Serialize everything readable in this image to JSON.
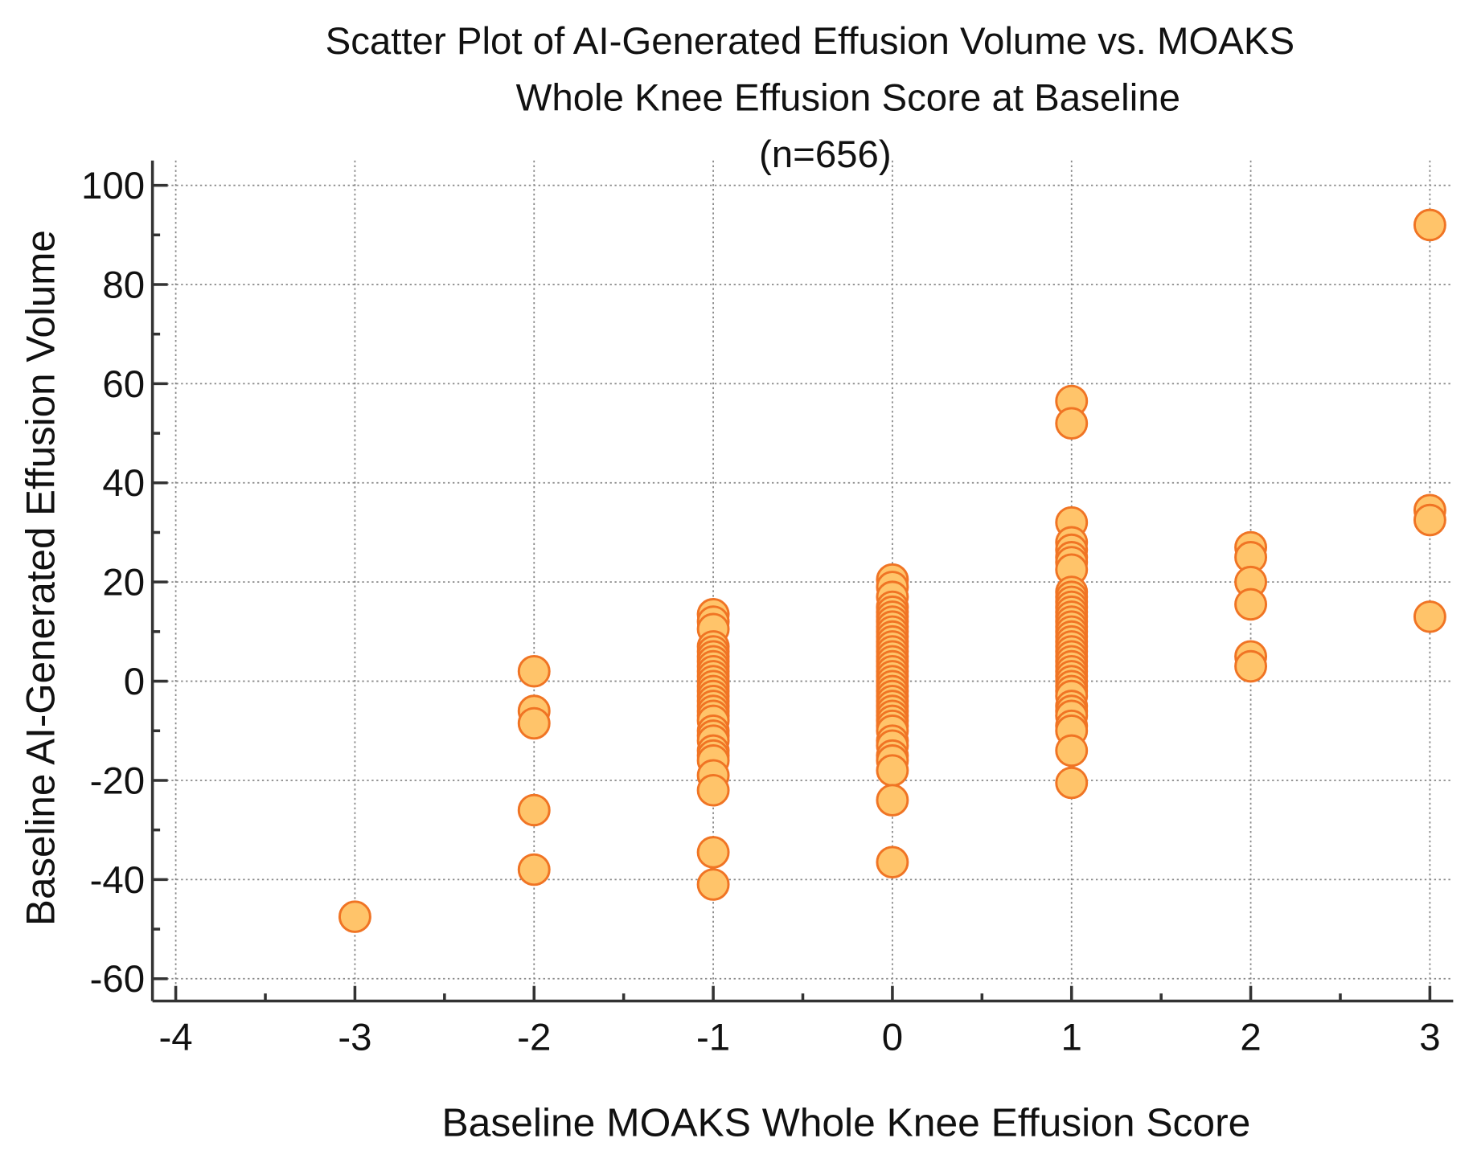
{
  "chart_data": {
    "type": "scatter",
    "title": [
      "Scatter Plot of AI-Generated Effusion Volume vs. MOAKS",
      "Whole Knee Effusion Score at Baseline",
      "(n=656)"
    ],
    "xlabel": "Baseline MOAKS Whole Knee Effusion Score",
    "ylabel": "Baseline AI-Generated Effusion Volume",
    "xlim": [
      -4.13,
      3.13
    ],
    "xticks": [
      -4,
      -3,
      -2,
      -1,
      0,
      1,
      2,
      3
    ],
    "ylim": [
      -64.5,
      105
    ],
    "yticks": [
      -60,
      -40,
      -20,
      0,
      20,
      40,
      60,
      80,
      100
    ],
    "grid": true,
    "color": "#ffc46a",
    "edgecolor": "#f07424",
    "x": [
      -3,
      -2,
      -2,
      -2,
      -2,
      -2,
      -1,
      -1,
      -1,
      -1,
      -1,
      -1,
      -1,
      -1,
      -1,
      -1,
      -1,
      -1,
      -1,
      -1,
      -1,
      -1,
      -1,
      -1,
      -1,
      -1,
      -1,
      -1,
      -1,
      -1,
      -1,
      -1,
      -1,
      -1,
      -1,
      0,
      0,
      0,
      0,
      0,
      0,
      0,
      0,
      0,
      0,
      0,
      0,
      0,
      0,
      0,
      0,
      0,
      0,
      0,
      0,
      0,
      0,
      0,
      0,
      0,
      0,
      0,
      0,
      0,
      0,
      0,
      0,
      0,
      0,
      0,
      0,
      1,
      1,
      1,
      1,
      1,
      1,
      1,
      1,
      1,
      1,
      1,
      1,
      1,
      1,
      1,
      1,
      1,
      1,
      1,
      1,
      1,
      1,
      1,
      1,
      1,
      1,
      1,
      1,
      1,
      1,
      1,
      1,
      1,
      1,
      1,
      1,
      1,
      2,
      2,
      2,
      2,
      2,
      2,
      3,
      3,
      3,
      3
    ],
    "values": [
      -47.5,
      2,
      -6,
      -8.5,
      -26,
      -38,
      13.5,
      12,
      10.5,
      7,
      6,
      5,
      4,
      3,
      2,
      1,
      0,
      -1,
      -2,
      -3,
      -4,
      -5,
      -6,
      -7,
      -8,
      -10,
      -11,
      -12,
      -14,
      -15,
      -16,
      -19,
      -22,
      -34.5,
      -41,
      20.5,
      19,
      17,
      15,
      14,
      13,
      12,
      11,
      10,
      9,
      8,
      7,
      6,
      5,
      4,
      3,
      2,
      1,
      0,
      -1,
      -2,
      -3,
      -4,
      -5,
      -6,
      -7,
      -8,
      -9,
      -10,
      -12,
      -13,
      -15,
      -16,
      -18,
      -24,
      -36.5,
      56.5,
      52,
      32,
      28,
      26.5,
      25,
      24,
      22.5,
      18,
      17,
      16,
      15,
      14,
      13,
      12,
      11,
      10,
      9,
      8,
      7,
      6,
      5,
      4,
      3,
      2,
      1,
      0,
      -1,
      -2,
      -3,
      -5,
      -6,
      -7,
      -9,
      -10,
      -14,
      -20.5,
      27,
      25,
      20,
      15.5,
      5,
      3,
      92,
      34.5,
      32.5,
      13
    ]
  }
}
